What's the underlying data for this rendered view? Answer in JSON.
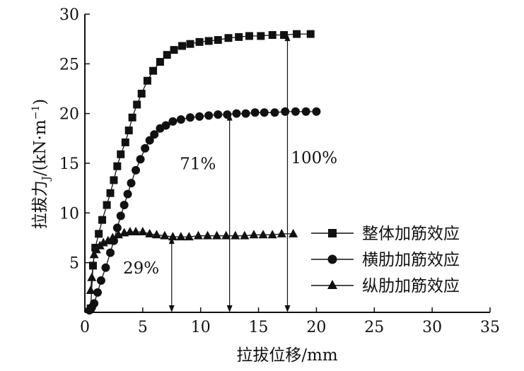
{
  "chart_data": {
    "type": "line",
    "xlabel": "拉拔位移/mm",
    "ylabel_main": "拉拔力",
    "ylabel_sub": "J",
    "ylabel_unit_open": "/(kN·m",
    "ylabel_unit_exp": "−1",
    "ylabel_unit_close": ")",
    "xlim": [
      0,
      35
    ],
    "ylim": [
      0,
      30
    ],
    "xticks": [
      0,
      5,
      10,
      15,
      20,
      25,
      30,
      35
    ],
    "yticks": [
      5,
      10,
      15,
      20,
      25,
      30
    ],
    "xtick_labels": [
      "0",
      "5",
      "10",
      "15",
      "20",
      "25",
      "30",
      "35"
    ],
    "ytick_labels": [
      "5",
      "10",
      "15",
      "20",
      "25",
      "30"
    ],
    "legend_position": "right",
    "series": [
      {
        "name": "整体加筋效应",
        "marker": "square",
        "x": [
          0.5,
          0.7,
          0.9,
          1.2,
          1.5,
          1.9,
          2.2,
          2.5,
          2.8,
          3.1,
          3.5,
          3.8,
          4.1,
          4.5,
          4.9,
          5.4,
          5.9,
          6.5,
          7.1,
          7.7,
          8.4,
          9.1,
          9.9,
          10.7,
          11.5,
          12.4,
          13.3,
          14.2,
          15.2,
          16.2,
          17.2,
          18.3,
          19.5
        ],
        "y": [
          0.4,
          4.7,
          6.5,
          7.9,
          9.3,
          10.8,
          12.0,
          13.3,
          14.7,
          15.9,
          17.1,
          18.3,
          19.6,
          20.9,
          22.0,
          23.3,
          24.3,
          25.2,
          25.9,
          26.4,
          26.8,
          27.0,
          27.2,
          27.3,
          27.4,
          27.6,
          27.7,
          27.8,
          27.8,
          27.9,
          27.9,
          28.0,
          28.0
        ]
      },
      {
        "name": "横肋加筋效应",
        "marker": "circle",
        "x": [
          0.4,
          0.6,
          0.8,
          1.1,
          1.4,
          1.8,
          2.2,
          2.5,
          2.8,
          3.1,
          3.4,
          3.7,
          4.0,
          4.4,
          4.8,
          5.2,
          5.6,
          6.0,
          6.5,
          7.0,
          7.6,
          8.3,
          9.1,
          9.9,
          10.7,
          11.5,
          12.3,
          13.1,
          13.9,
          14.7,
          15.5,
          16.4,
          17.3,
          18.2,
          19.1,
          20.0
        ],
        "y": [
          0.2,
          0.5,
          0.9,
          2.0,
          3.2,
          4.5,
          6.0,
          7.2,
          8.5,
          9.7,
          10.8,
          11.9,
          13.0,
          14.3,
          15.4,
          16.5,
          17.3,
          17.9,
          18.5,
          18.8,
          19.2,
          19.4,
          19.6,
          19.7,
          19.8,
          19.9,
          19.9,
          20.0,
          20.0,
          20.1,
          20.1,
          20.1,
          20.2,
          20.2,
          20.2,
          20.2
        ]
      },
      {
        "name": "纵肋加筋效应",
        "marker": "triangle",
        "x": [
          0.5,
          0.6,
          0.8,
          1.0,
          1.3,
          1.6,
          2.0,
          2.4,
          2.9,
          3.4,
          3.9,
          4.4,
          5.0,
          5.6,
          6.2,
          6.9,
          7.6,
          8.3,
          9.0,
          9.8,
          10.6,
          11.4,
          12.2,
          13.0,
          13.8,
          14.6,
          15.4,
          16.2,
          17.0,
          18.0
        ],
        "y": [
          2.2,
          3.5,
          5.8,
          6.3,
          6.7,
          7.0,
          7.2,
          7.5,
          7.8,
          8.0,
          8.1,
          8.1,
          8.1,
          7.9,
          7.8,
          7.7,
          7.6,
          7.6,
          7.6,
          7.7,
          7.7,
          7.7,
          7.7,
          7.7,
          7.7,
          7.8,
          7.8,
          7.8,
          7.9,
          7.9
        ]
      }
    ],
    "annotations": [
      {
        "text": "29%",
        "arrow_x": 7.5,
        "arrow_y_from": 0,
        "arrow_y_to": 7.6,
        "label_x": 3.3,
        "label_y": 3.9
      },
      {
        "text": "71%",
        "arrow_x": 12.5,
        "arrow_y_from": 0,
        "arrow_y_to": 20.0,
        "label_x": 8.2,
        "label_y": 14.4
      },
      {
        "text": "100%",
        "arrow_x": 17.5,
        "arrow_y_from": 0,
        "arrow_y_to": 28.0,
        "label_x": 17.8,
        "label_y": 15.0
      }
    ]
  }
}
